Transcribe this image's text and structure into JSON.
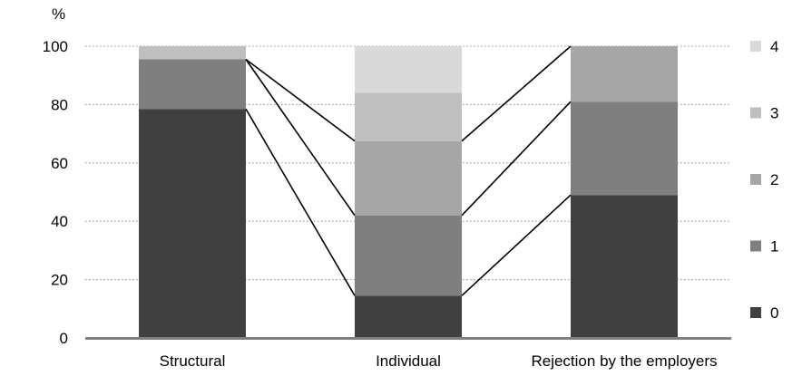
{
  "chart_data": {
    "type": "bar",
    "stacked": true,
    "y_unit_label": "%",
    "categories": [
      "Structural",
      "Individual",
      "Rejection by the employers"
    ],
    "ylim": [
      0,
      100
    ],
    "yticks": [
      "0",
      "20",
      "40",
      "60",
      "80",
      "100"
    ],
    "grid": "dotted horizontal",
    "legend_position": "right",
    "series": [
      {
        "name": "0",
        "values": [
          78.5,
          14.5,
          49
        ],
        "color": "#404040"
      },
      {
        "name": "1",
        "values": [
          17,
          27.5,
          32
        ],
        "color": "#7f7f7f"
      },
      {
        "name": "2",
        "values": [
          0,
          25.5,
          19
        ],
        "color": "#a6a6a6"
      },
      {
        "name": "3",
        "values": [
          4.5,
          16.5,
          0
        ],
        "color": "#bfbfbf"
      },
      {
        "name": "4",
        "values": [
          0,
          16,
          0
        ],
        "color": "#d9d9d9"
      }
    ],
    "connector_lines": true
  }
}
